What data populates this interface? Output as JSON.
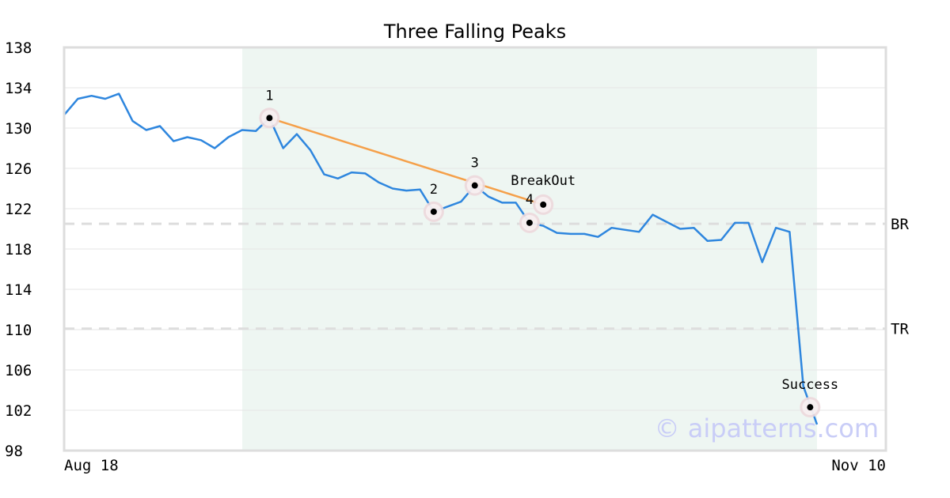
{
  "chart_data": {
    "type": "line",
    "title": "Three Falling Peaks",
    "xlabel": "",
    "ylabel": "",
    "x_tick_labels": [
      "Aug 18",
      "Nov 10"
    ],
    "ylim": [
      98,
      138
    ],
    "y_ticks": [
      98,
      102,
      106,
      110,
      114,
      118,
      122,
      126,
      130,
      134,
      138
    ],
    "grid": true,
    "colors": {
      "price_line": "#2e86de",
      "trend_line": "#f5a04a",
      "shaded_region": "#eef6f2",
      "reference_line": "#dddddd",
      "marker_halo": "#ecd8dc",
      "marker_dot": "#000000",
      "watermark": "#c9cdf7"
    },
    "series": [
      {
        "values": [
          131.3,
          132.9,
          133.2,
          132.9,
          133.4,
          130.7,
          129.8,
          130.2,
          128.7,
          129.1,
          128.8,
          128.0,
          129.1,
          129.8,
          129.7,
          131.0,
          128.0,
          129.4,
          127.8,
          125.4,
          125.0,
          125.6,
          125.5,
          124.6,
          124.0,
          123.8,
          123.9,
          121.7,
          122.2,
          122.7,
          124.3,
          123.2,
          122.6,
          122.6,
          120.6,
          120.3,
          119.6,
          119.5,
          119.5,
          119.2,
          120.1,
          119.9,
          119.7,
          121.4,
          120.7,
          120.0,
          120.1,
          118.8,
          118.9,
          120.6,
          120.6,
          116.7,
          120.1,
          119.7,
          104.4,
          100.6
        ]
      }
    ],
    "shaded_region_index_range": [
      13,
      56
    ],
    "reference_lines": [
      {
        "label": "BR",
        "value": 120.5
      },
      {
        "label": "TR",
        "value": 110.1
      }
    ],
    "trend_line": [
      {
        "index": 15,
        "value": 131.0
      },
      {
        "index": 35,
        "value": 122.4
      }
    ],
    "markers": [
      {
        "label": "1",
        "index": 15,
        "value": 131.0
      },
      {
        "label": "2",
        "index": 27,
        "value": 121.7
      },
      {
        "label": "3",
        "index": 30,
        "value": 124.3
      },
      {
        "label": "4",
        "index": 34,
        "value": 120.6
      },
      {
        "label": "BreakOut",
        "index": 35,
        "value": 122.4
      },
      {
        "label": "Success",
        "index": 54.5,
        "value": 102.3
      }
    ],
    "watermark": "© aipatterns.com"
  }
}
